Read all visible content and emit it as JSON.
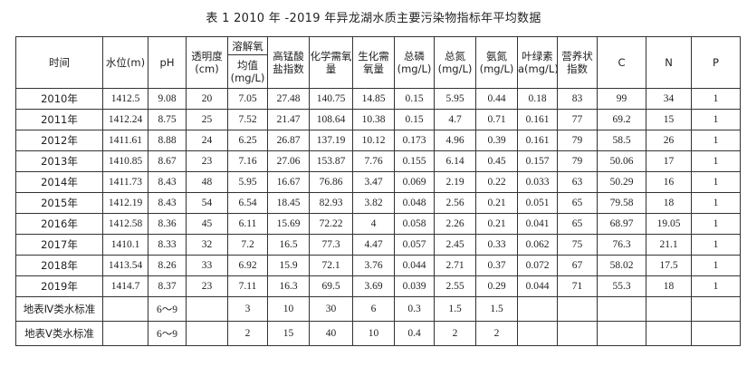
{
  "title": "表 1  2010 年 -2019 年异龙湖水质主要污染物指标年平均数据",
  "headers": {
    "time": "时间",
    "level": "水位(m)",
    "ph": "pH",
    "transparency": "透明度(cm)",
    "do_top": "溶解氧",
    "do_bottom": "均值(mg/L)",
    "codmn": "高锰酸盐指数",
    "cod": "化学需氧量",
    "bod": "生化需氧量",
    "tp": "总磷(mg/L)",
    "tn": "总氮(mg/L)",
    "nh3": "氨氮(mg/L)",
    "chla": "叶绿素a(mg/L)",
    "trophic": "营养状指数",
    "c": "C",
    "n": "N",
    "p": "P"
  },
  "rows": [
    [
      "2010年",
      "1412.5",
      "9.08",
      "20",
      "7.05",
      "27.48",
      "140.75",
      "14.85",
      "0.15",
      "5.95",
      "0.44",
      "0.18",
      "83",
      "99",
      "34",
      "1"
    ],
    [
      "2011年",
      "1412.24",
      "8.75",
      "25",
      "7.52",
      "21.47",
      "108.64",
      "10.38",
      "0.15",
      "4.7",
      "0.71",
      "0.161",
      "77",
      "69.2",
      "15",
      "1"
    ],
    [
      "2012年",
      "1411.61",
      "8.88",
      "24",
      "6.25",
      "26.87",
      "137.19",
      "10.12",
      "0.173",
      "4.96",
      "0.39",
      "0.161",
      "79",
      "58.5",
      "26",
      "1"
    ],
    [
      "2013年",
      "1410.85",
      "8.67",
      "23",
      "7.16",
      "27.06",
      "153.87",
      "7.76",
      "0.155",
      "6.14",
      "0.45",
      "0.157",
      "79",
      "50.06",
      "17",
      "1"
    ],
    [
      "2014年",
      "1411.73",
      "8.43",
      "48",
      "5.95",
      "16.67",
      "76.86",
      "3.47",
      "0.069",
      "2.19",
      "0.22",
      "0.033",
      "63",
      "50.29",
      "16",
      "1"
    ],
    [
      "2015年",
      "1412.19",
      "8.43",
      "54",
      "6.54",
      "18.45",
      "82.93",
      "3.82",
      "0.048",
      "2.56",
      "0.21",
      "0.051",
      "65",
      "79.58",
      "18",
      "1"
    ],
    [
      "2016年",
      "1412.58",
      "8.36",
      "45",
      "6.11",
      "15.69",
      "72.22",
      "4",
      "0.058",
      "2.26",
      "0.21",
      "0.041",
      "65",
      "68.97",
      "19.05",
      "1"
    ],
    [
      "2017年",
      "1410.1",
      "8.33",
      "32",
      "7.2",
      "16.5",
      "77.3",
      "4.47",
      "0.057",
      "2.45",
      "0.33",
      "0.062",
      "75",
      "76.3",
      "21.1",
      "1"
    ],
    [
      "2018年",
      "1413.54",
      "8.26",
      "33",
      "6.92",
      "15.9",
      "72.1",
      "3.76",
      "0.044",
      "2.71",
      "0.37",
      "0.072",
      "67",
      "58.02",
      "17.5",
      "1"
    ],
    [
      "2019年",
      "1414.7",
      "8.37",
      "23",
      "7.11",
      "16.3",
      "69.5",
      "3.69",
      "0.039",
      "2.55",
      "0.29",
      "0.044",
      "71",
      "55.3",
      "18",
      "1"
    ]
  ],
  "standards": [
    [
      "地表Ⅳ类水标准",
      "",
      "6～9",
      "",
      "3",
      "10",
      "30",
      "6",
      "0.3",
      "1.5",
      "1.5",
      "",
      "",
      "",
      "",
      ""
    ],
    [
      "地表Ⅴ类水标准",
      "",
      "6～9",
      "",
      "2",
      "15",
      "40",
      "10",
      "0.4",
      "2",
      "2",
      "",
      "",
      "",
      "",
      ""
    ]
  ]
}
